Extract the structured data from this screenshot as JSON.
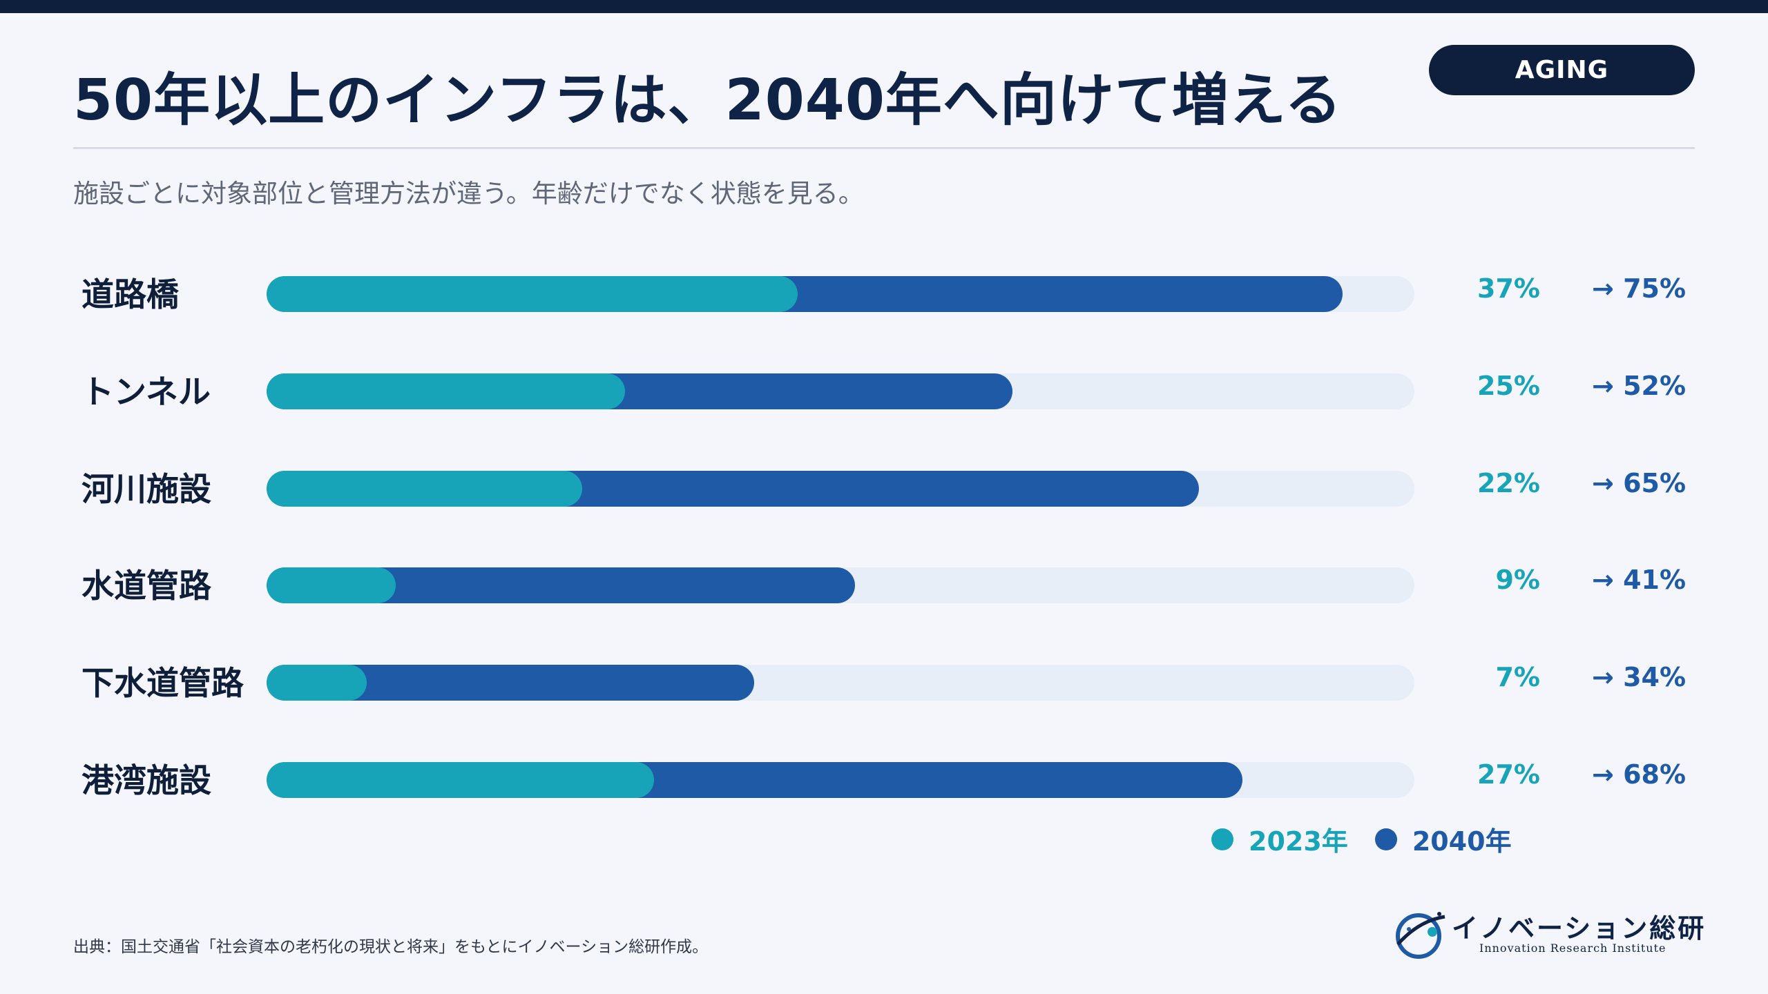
{
  "header": {
    "title": "50年以上のインフラは、2040年へ向けて増える",
    "badge": "AGING",
    "subtitle": "施設ごとに対象部位と管理方法が違う。年齢だけでなく状態を見る。"
  },
  "chart_data": {
    "type": "bar",
    "orientation": "horizontal",
    "categories": [
      "道路橋",
      "トンネル",
      "河川施設",
      "水道管路",
      "下水道管路",
      "港湾施設"
    ],
    "series": [
      {
        "name": "2023年",
        "values": [
          37,
          25,
          22,
          9,
          7,
          27
        ],
        "color": "#18a4b8"
      },
      {
        "name": "2040年",
        "values": [
          75,
          52,
          65,
          41,
          34,
          68
        ],
        "color": "#1f5aa6"
      }
    ],
    "labels_2023": [
      "37%",
      "25%",
      "22%",
      "9%",
      "7%",
      "27%"
    ],
    "labels_2040": [
      "→ 75%",
      "→ 52%",
      "→ 65%",
      "→ 41%",
      "→ 34%",
      "→ 68%"
    ],
    "xlim": [
      0,
      80
    ],
    "legend": "bottom-right"
  },
  "footer": {
    "source": "出典：国土交通省「社会資本の老朽化の現状と将来」をもとにイノベーション総研作成。",
    "logo_text": "イノベーション総研",
    "logo_sub": "Innovation Research Institute"
  },
  "colors": {
    "navy": "#0d1f3c",
    "teal": "#18a4b8",
    "blue": "#1f5aa6",
    "track": "#e8eef8"
  }
}
